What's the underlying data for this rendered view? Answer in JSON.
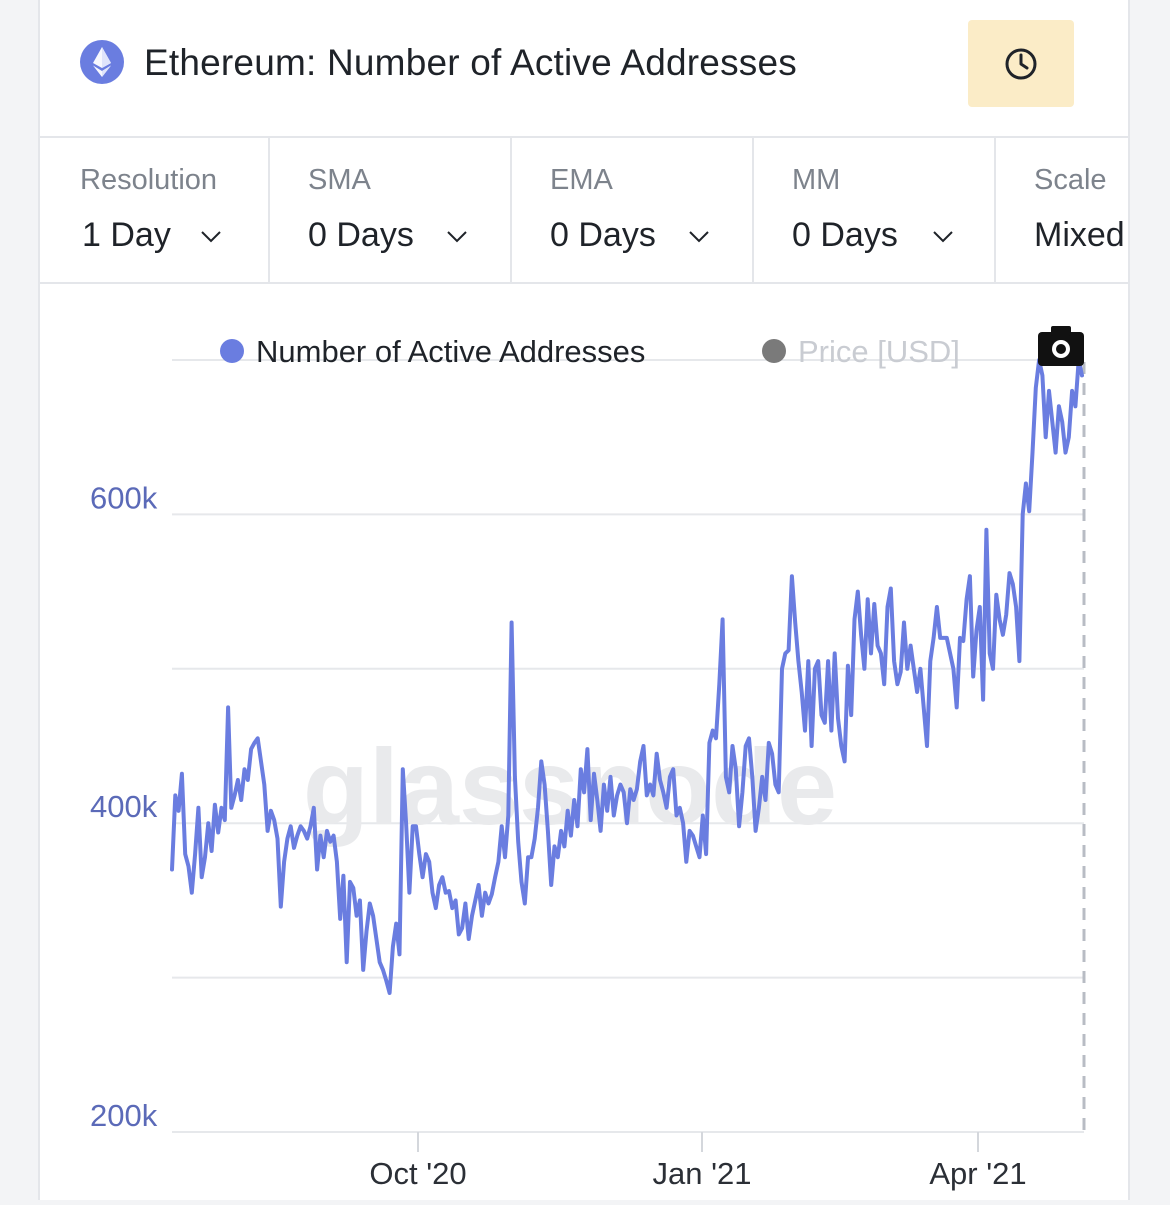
{
  "header": {
    "title": "Ethereum: Number of Active Addresses",
    "icon": "ethereum-icon",
    "time_button_icon": "clock-icon"
  },
  "controls": [
    {
      "label": "Resolution",
      "value": "1 Day"
    },
    {
      "label": "SMA",
      "value": "0 Days"
    },
    {
      "label": "EMA",
      "value": "0 Days"
    },
    {
      "label": "MM",
      "value": "0 Days"
    },
    {
      "label": "Scale",
      "value": "Mixed"
    }
  ],
  "legend": {
    "series_label": "Number of Active Addresses",
    "price_label": "Price [USD]",
    "screenshot_icon": "camera-icon"
  },
  "watermark": "glassnode",
  "colors": {
    "series": "#6a7de0",
    "axis_text": "#5b6ab8",
    "price_dot": "#7a7a7a",
    "price_text": "#c9ccd2",
    "clock_bg": "#fbecc7"
  },
  "chart_data": {
    "type": "line",
    "y_tick_labels": [
      "200k",
      "400k",
      "600k"
    ],
    "y_tick_values": [
      200000,
      400000,
      600000
    ],
    "x_tick_labels": [
      "Oct '20",
      "Jan '21",
      "Apr '21"
    ],
    "ylim": [
      200000,
      700000
    ],
    "grid": true,
    "legend_position": "top",
    "series": [
      {
        "name": "Number of Active Addresses",
        "values": [
          370000,
          418000,
          408000,
          432000,
          380000,
          372000,
          355000,
          380000,
          410000,
          365000,
          378000,
          400000,
          382000,
          412000,
          394000,
          410000,
          402000,
          475000,
          410000,
          418000,
          428000,
          415000,
          435000,
          428000,
          448000,
          452000,
          455000,
          440000,
          425000,
          395000,
          408000,
          402000,
          390000,
          346000,
          375000,
          390000,
          398000,
          384000,
          392000,
          398000,
          395000,
          390000,
          398000,
          410000,
          370000,
          392000,
          378000,
          395000,
          388000,
          392000,
          375000,
          338000,
          366000,
          310000,
          362000,
          358000,
          340000,
          350000,
          305000,
          330000,
          348000,
          340000,
          325000,
          310000,
          305000,
          298000,
          290000,
          320000,
          335000,
          315000,
          435000,
          400000,
          355000,
          398000,
          398000,
          380000,
          365000,
          380000,
          375000,
          355000,
          345000,
          360000,
          365000,
          355000,
          356000,
          345000,
          350000,
          328000,
          332000,
          348000,
          325000,
          340000,
          350000,
          360000,
          340000,
          355000,
          348000,
          354000,
          365000,
          375000,
          398000,
          378000,
          405000,
          530000,
          430000,
          388000,
          362000,
          348000,
          378000,
          378000,
          390000,
          410000,
          440000,
          425000,
          395000,
          360000,
          385000,
          378000,
          395000,
          385000,
          408000,
          392000,
          415000,
          398000,
          435000,
          420000,
          448000,
          402000,
          432000,
          415000,
          395000,
          425000,
          408000,
          430000,
          405000,
          418000,
          425000,
          420000,
          400000,
          422000,
          415000,
          422000,
          440000,
          450000,
          418000,
          425000,
          418000,
          445000,
          428000,
          420000,
          410000,
          430000,
          435000,
          405000,
          410000,
          400000,
          375000,
          395000,
          392000,
          385000,
          378000,
          405000,
          380000,
          452000,
          460000,
          455000,
          490000,
          532000,
          430000,
          420000,
          450000,
          435000,
          398000,
          420000,
          450000,
          455000,
          430000,
          395000,
          410000,
          430000,
          415000,
          452000,
          445000,
          425000,
          420000,
          500000,
          510000,
          512000,
          560000,
          530000,
          505000,
          485000,
          460000,
          505000,
          450000,
          500000,
          505000,
          470000,
          465000,
          505000,
          460000,
          510000,
          468000,
          450000,
          440000,
          502000,
          470000,
          532000,
          550000,
          522000,
          500000,
          545000,
          510000,
          542000,
          515000,
          510000,
          490000,
          540000,
          552000,
          505000,
          490000,
          498000,
          530000,
          500000,
          515000,
          500000,
          485000,
          500000,
          475000,
          450000,
          505000,
          520000,
          540000,
          520000,
          520000,
          520000,
          510000,
          500000,
          475000,
          520000,
          518000,
          545000,
          560000,
          495000,
          525000,
          540000,
          480000,
          590000,
          510000,
          500000,
          548000,
          532000,
          522000,
          535000,
          562000,
          555000,
          540000,
          505000,
          600000,
          620000,
          602000,
          640000,
          682000,
          700000,
          690000,
          650000,
          680000,
          660000,
          640000,
          670000,
          660000,
          640000,
          650000,
          680000,
          670000,
          700000,
          690000
        ]
      }
    ]
  }
}
